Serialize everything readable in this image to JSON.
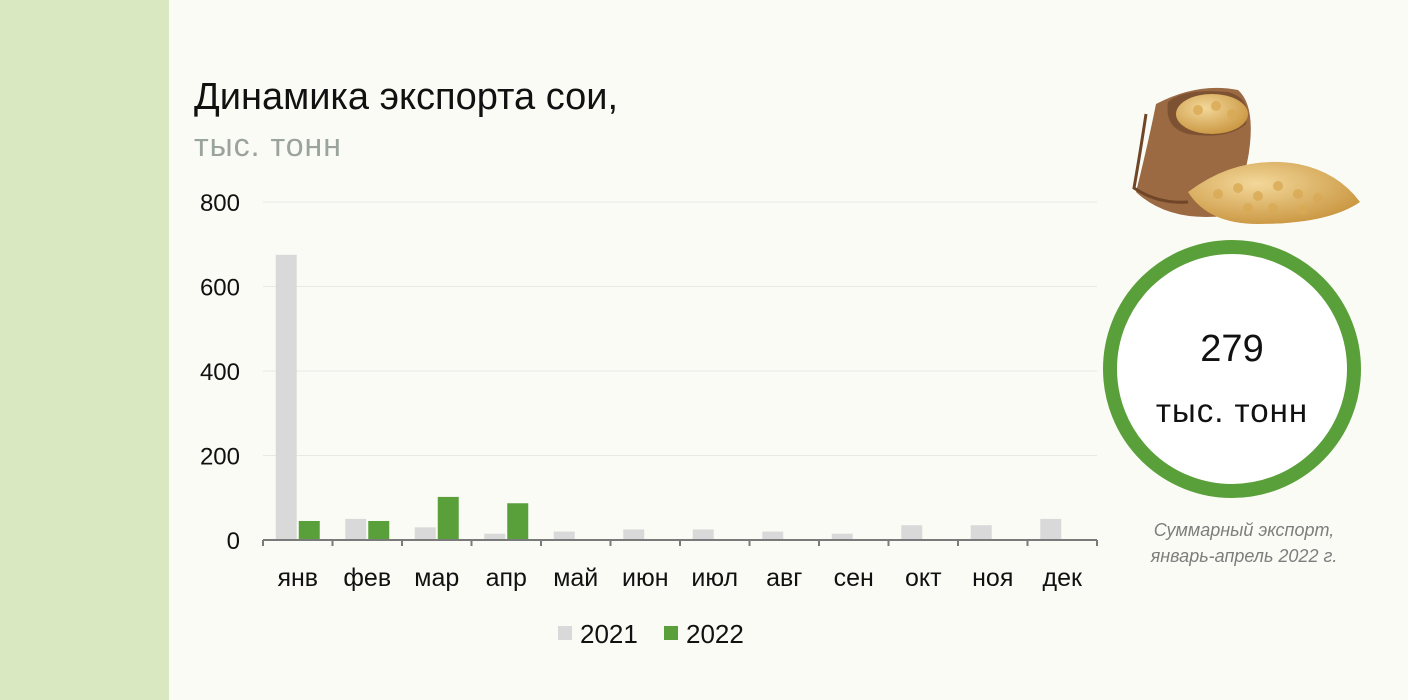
{
  "title": "Динамика экспорта сои,",
  "subtitle": "тыс. тонн",
  "summary": {
    "value": "279",
    "unit": "тыс. тонн",
    "caption_line1": "Суммарный экспорт,",
    "caption_line2": "январь-апрель 2022 г."
  },
  "image": {
    "icon": "soybean-sack-icon"
  },
  "colors": {
    "series_2021": "#d9d9d9",
    "series_2022": "#5aa03a",
    "ring": "#5aa03a",
    "side_band": "#d9e8c1"
  },
  "chart_data": {
    "type": "bar",
    "title": "Динамика экспорта сои,",
    "ylabel": "тыс. тонн",
    "xlabel": "",
    "ylim": [
      0,
      800
    ],
    "yticks": [
      0,
      200,
      400,
      600,
      800
    ],
    "grid": true,
    "legend": "bottom",
    "categories": [
      "янв",
      "фев",
      "мар",
      "апр",
      "май",
      "июн",
      "июл",
      "авг",
      "сен",
      "окт",
      "ноя",
      "дек"
    ],
    "series": [
      {
        "name": "2021",
        "color": "#d9d9d9",
        "values": [
          675,
          50,
          30,
          15,
          20,
          25,
          25,
          20,
          15,
          35,
          35,
          50
        ]
      },
      {
        "name": "2022",
        "color": "#5aa03a",
        "values": [
          45,
          45,
          102,
          87,
          null,
          null,
          null,
          null,
          null,
          null,
          null,
          null
        ]
      }
    ]
  }
}
